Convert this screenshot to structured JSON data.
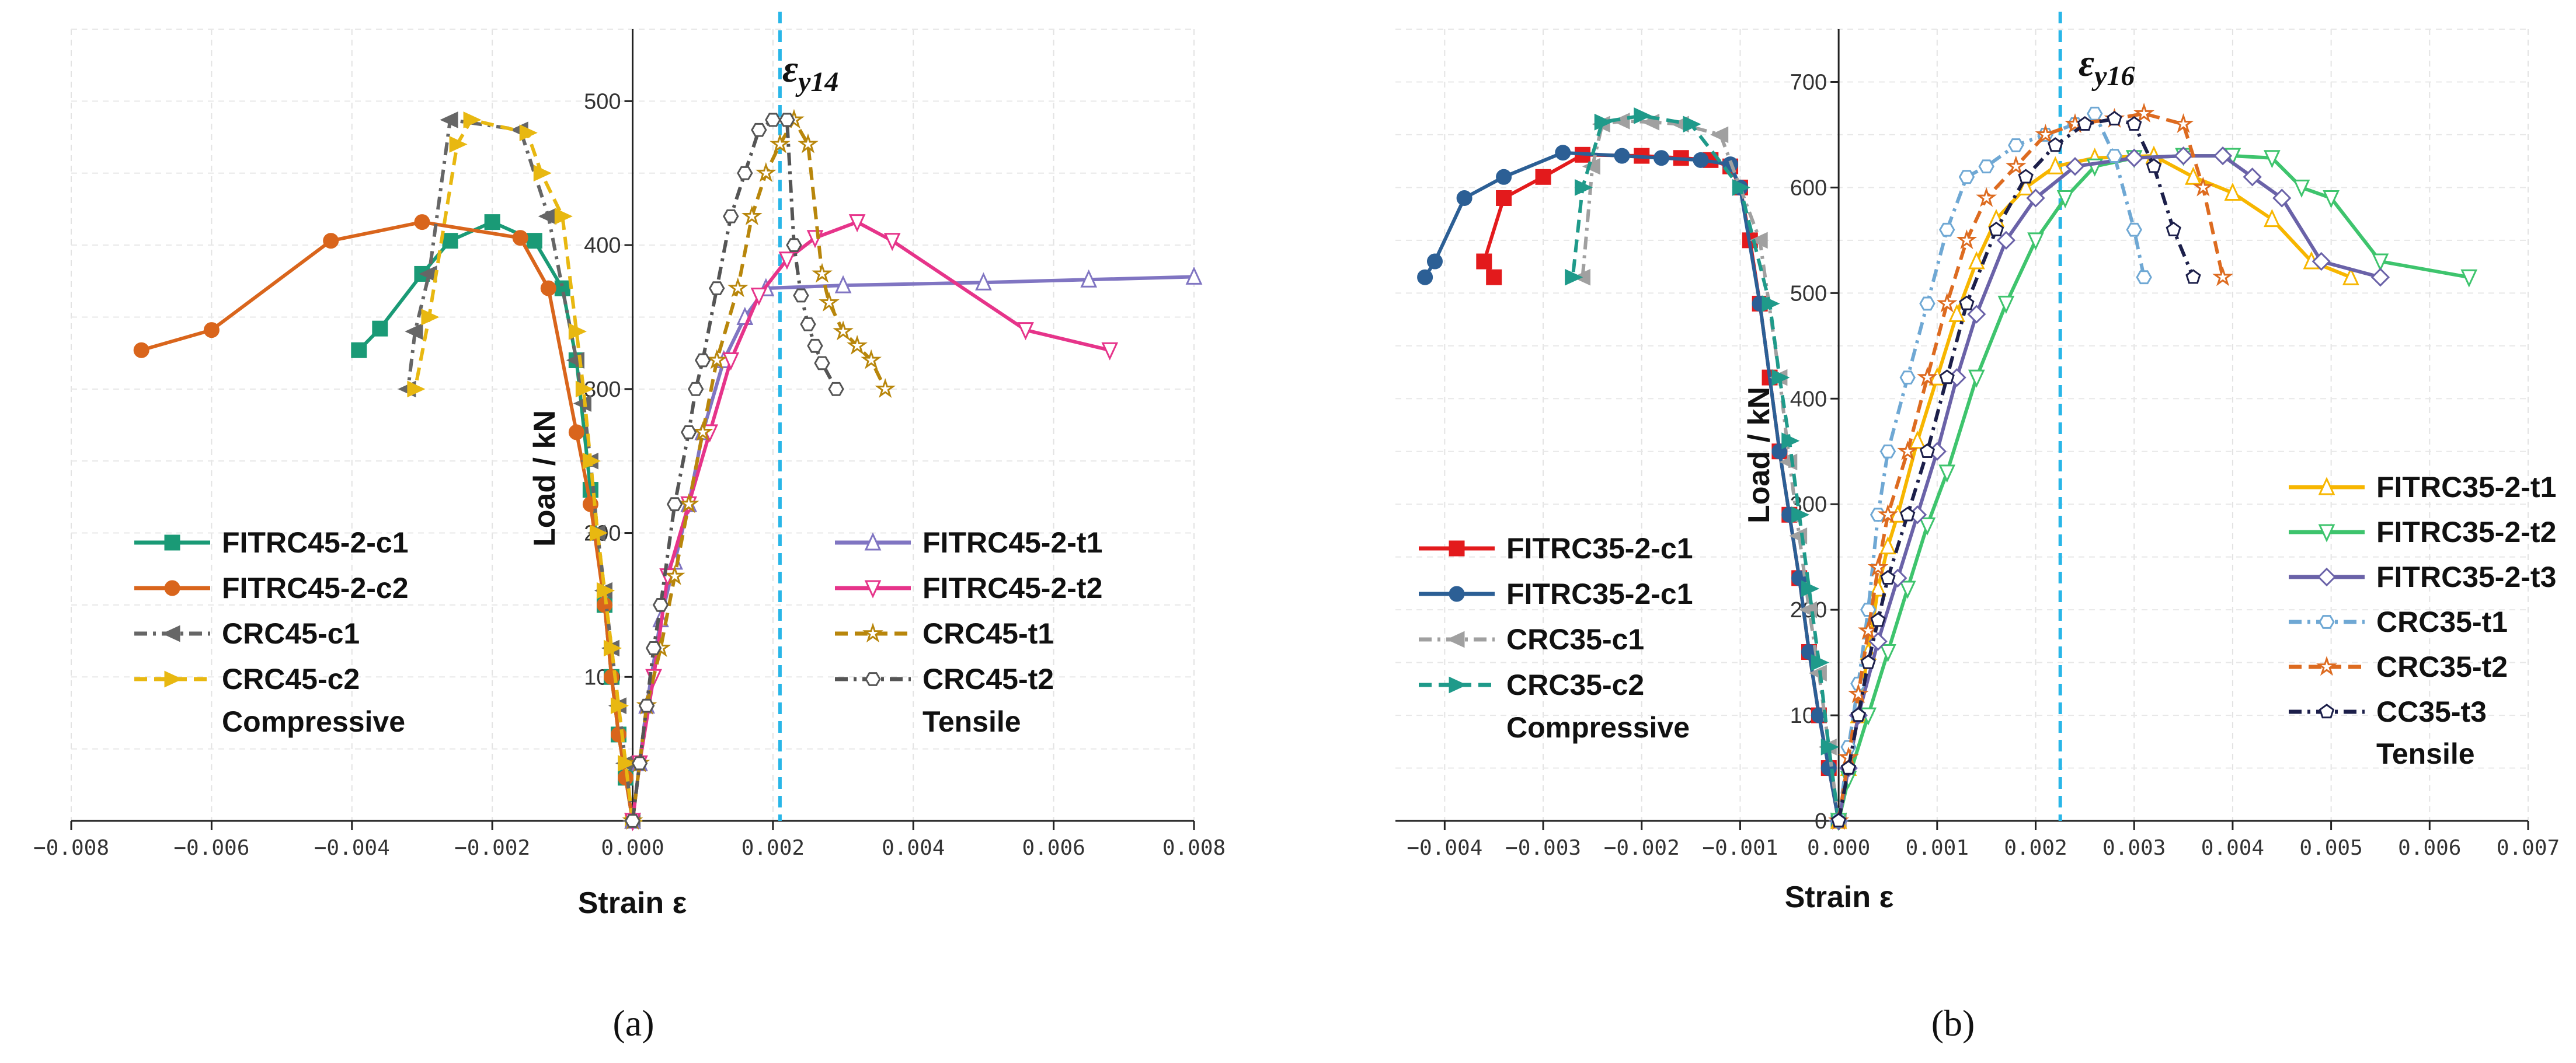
{
  "chart_data": [
    {
      "panel_label": "(a)",
      "type": "line",
      "xlabel": "Strain ε",
      "ylabel": "Load / kN",
      "xlim": [
        -0.008,
        0.008
      ],
      "ylim": [
        0,
        550
      ],
      "xticks": [
        "−0.008",
        "−0.006",
        "−0.004",
        "−0.002",
        "0.000",
        "0.002",
        "0.004",
        "0.006",
        "0.008"
      ],
      "yticks": [
        "100",
        "200",
        "300",
        "400",
        "500"
      ],
      "grid": true,
      "reference_line": {
        "x": 0.0021,
        "label_main": "ε",
        "label_sub": "y14",
        "color": "#29b6e8"
      },
      "legend_groups": [
        {
          "title": "Compressive",
          "placement": "left",
          "series_index": [
            0,
            1,
            2,
            3
          ]
        },
        {
          "title": "Tensile",
          "placement": "right",
          "series_index": [
            4,
            5,
            6,
            7
          ]
        }
      ],
      "series": [
        {
          "name": "FITRC45-2-c1",
          "color": "#1a9a76",
          "dash": "solid",
          "marker": "square",
          "filled": true,
          "x": [
            0,
            -0.0001,
            -0.0002,
            -0.0003,
            -0.0004,
            -0.0006,
            -0.0008,
            -0.001,
            -0.0014,
            -0.002,
            -0.0026,
            -0.003,
            -0.0036,
            -0.0039
          ],
          "y": [
            0,
            30,
            60,
            100,
            150,
            230,
            320,
            370,
            403,
            416,
            403,
            380,
            342,
            327
          ]
        },
        {
          "name": "FITRC45-2-c2",
          "color": "#d9651c",
          "dash": "solid",
          "marker": "circle",
          "filled": true,
          "x": [
            0,
            -0.0001,
            -0.0002,
            -0.0003,
            -0.0004,
            -0.0006,
            -0.0008,
            -0.0012,
            -0.0016,
            -0.003,
            -0.0043,
            -0.006,
            -0.007
          ],
          "y": [
            0,
            30,
            60,
            100,
            150,
            220,
            270,
            370,
            405,
            416,
            403,
            341,
            327
          ]
        },
        {
          "name": "CRC45-c1",
          "color": "#666666",
          "dash": "dashdot",
          "marker": "tri-left",
          "filled": true,
          "x": [
            0,
            -0.0001,
            -0.0002,
            -0.0003,
            -0.0004,
            -0.0005,
            -0.0006,
            -0.0007,
            -0.0008,
            -0.0012,
            -0.0016,
            -0.0026,
            -0.0029,
            -0.0031,
            -0.0032
          ],
          "y": [
            0,
            40,
            80,
            120,
            160,
            200,
            250,
            290,
            320,
            420,
            480,
            487,
            380,
            340,
            300
          ]
        },
        {
          "name": "CRC45-c2",
          "color": "#e8b811",
          "dash": "dash",
          "marker": "tri-right",
          "filled": true,
          "x": [
            0,
            -0.0001,
            -0.0002,
            -0.0003,
            -0.0004,
            -0.0005,
            -0.0006,
            -0.0007,
            -0.0008,
            -0.001,
            -0.0013,
            -0.0015,
            -0.0023,
            -0.0025,
            -0.0029,
            -0.0031
          ],
          "y": [
            0,
            40,
            80,
            120,
            160,
            200,
            250,
            300,
            340,
            420,
            450,
            478,
            487,
            470,
            350,
            300
          ]
        },
        {
          "name": "FITRC45-2-t1",
          "color": "#8075c2",
          "dash": "solid",
          "marker": "tri-up",
          "filled": false,
          "x": [
            0,
            0.0001,
            0.0002,
            0.0004,
            0.0006,
            0.0008,
            0.001,
            0.0013,
            0.0016,
            0.0019,
            0.003,
            0.005,
            0.0065,
            0.008
          ],
          "y": [
            0,
            40,
            80,
            140,
            180,
            220,
            270,
            320,
            350,
            370,
            372,
            374,
            376,
            378
          ]
        },
        {
          "name": "FITRC45-2-t2",
          "color": "#e6348a",
          "dash": "solid",
          "marker": "tri-down",
          "filled": false,
          "x": [
            0,
            0.0001,
            0.0003,
            0.0005,
            0.0008,
            0.0011,
            0.0014,
            0.0018,
            0.0022,
            0.0026,
            0.0032,
            0.0037,
            0.0056,
            0.0068
          ],
          "y": [
            0,
            40,
            100,
            170,
            220,
            270,
            320,
            365,
            390,
            405,
            416,
            403,
            341,
            327
          ]
        },
        {
          "name": "CRC45-t1",
          "color": "#b8860b",
          "dash": "dash",
          "marker": "star",
          "filled": false,
          "x": [
            0,
            0.0001,
            0.0002,
            0.0004,
            0.0006,
            0.0008,
            0.001,
            0.0012,
            0.0015,
            0.0017,
            0.0019,
            0.0021,
            0.0023,
            0.0025,
            0.0027,
            0.0028,
            0.003,
            0.0032,
            0.0034,
            0.0036
          ],
          "y": [
            0,
            40,
            80,
            120,
            170,
            220,
            270,
            320,
            370,
            420,
            450,
            470,
            487,
            470,
            380,
            360,
            340,
            330,
            320,
            300
          ]
        },
        {
          "name": "CRC45-t2",
          "color": "#555555",
          "dash": "dashdot",
          "marker": "hexagon",
          "filled": false,
          "x": [
            0,
            0.0001,
            0.0002,
            0.0003,
            0.0004,
            0.0006,
            0.0008,
            0.0009,
            0.001,
            0.0012,
            0.0014,
            0.0016,
            0.0018,
            0.002,
            0.0022,
            0.0023,
            0.0024,
            0.0025,
            0.0026,
            0.0027,
            0.0029
          ],
          "y": [
            0,
            40,
            80,
            120,
            150,
            220,
            270,
            300,
            320,
            370,
            420,
            450,
            480,
            487,
            487,
            400,
            365,
            345,
            330,
            318,
            300
          ]
        }
      ]
    },
    {
      "panel_label": "(b)",
      "type": "line",
      "xlabel": "Strain ε",
      "ylabel": "Load / kN",
      "xlim": [
        -0.0045,
        0.007
      ],
      "ylim": [
        0,
        750
      ],
      "xticks": [
        "−0.004",
        "−0.003",
        "−0.002",
        "−0.001",
        "0.000",
        "0.001",
        "0.002",
        "0.003",
        "0.004",
        "0.005",
        "0.006",
        "0.007"
      ],
      "yticks": [
        "0",
        "100",
        "200",
        "300",
        "400",
        "500",
        "600",
        "700"
      ],
      "grid": true,
      "reference_line": {
        "x": 0.00225,
        "label_main": "ε",
        "label_sub": "y16",
        "color": "#29b6e8"
      },
      "legend_groups": [
        {
          "title": "Compressive",
          "placement": "left",
          "series_index": [
            0,
            1,
            2,
            3
          ]
        },
        {
          "title": "Tensile",
          "placement": "right",
          "series_index": [
            4,
            5,
            6,
            7,
            8,
            9
          ]
        }
      ],
      "series": [
        {
          "name": "FITRC35-2-c1",
          "color": "#e31a1c",
          "dash": "solid",
          "marker": "square",
          "filled": true,
          "x": [
            0,
            -0.0001,
            -0.0002,
            -0.0003,
            -0.0004,
            -0.0005,
            -0.0006,
            -0.0007,
            -0.0008,
            -0.0009,
            -0.001,
            -0.0011,
            -0.0013,
            -0.0016,
            -0.002,
            -0.0026,
            -0.003,
            -0.0034,
            -0.0036,
            -0.0035
          ],
          "y": [
            0,
            50,
            100,
            160,
            230,
            290,
            350,
            420,
            490,
            550,
            600,
            620,
            626,
            628,
            630,
            631,
            610,
            590,
            530,
            515
          ]
        },
        {
          "name": "FITRC35-2-c1",
          "color": "#2c5f95",
          "dash": "solid",
          "marker": "circle",
          "filled": true,
          "x": [
            0,
            -0.0001,
            -0.0002,
            -0.0003,
            -0.0004,
            -0.0005,
            -0.0006,
            -0.0008,
            -0.001,
            -0.0011,
            -0.0014,
            -0.0018,
            -0.0022,
            -0.0028,
            -0.0034,
            -0.0038,
            -0.0041,
            -0.0042
          ],
          "y": [
            0,
            50,
            100,
            160,
            230,
            290,
            350,
            490,
            600,
            622,
            626,
            628,
            630,
            633,
            610,
            590,
            530,
            515
          ]
        },
        {
          "name": "CRC35-c1",
          "color": "#a0a0a0",
          "dash": "dashdot",
          "marker": "tri-left",
          "filled": true,
          "x": [
            0,
            -0.0001,
            -0.0002,
            -0.0003,
            -0.0004,
            -0.0005,
            -0.0006,
            -0.0008,
            -0.0012,
            -0.0016,
            -0.0019,
            -0.0022,
            -0.0024,
            -0.0025,
            -0.0026
          ],
          "y": [
            0,
            70,
            140,
            200,
            270,
            340,
            420,
            550,
            650,
            660,
            662,
            663,
            660,
            620,
            515
          ]
        },
        {
          "name": "CRC35-c2",
          "color": "#1f9a8a",
          "dash": "dash",
          "marker": "tri-right",
          "filled": true,
          "x": [
            0,
            -0.0001,
            -0.0002,
            -0.0003,
            -0.0004,
            -0.0005,
            -0.0006,
            -0.0007,
            -0.001,
            -0.0015,
            -0.002,
            -0.0024,
            -0.0026,
            -0.0027
          ],
          "y": [
            0,
            70,
            150,
            220,
            290,
            360,
            420,
            490,
            600,
            660,
            668,
            662,
            600,
            515
          ]
        },
        {
          "name": "FITRC35-2-t1",
          "color": "#f7b600",
          "dash": "solid",
          "marker": "tri-up",
          "filled": false,
          "x": [
            0,
            0.0001,
            0.0002,
            0.0003,
            0.0004,
            0.0005,
            0.0006,
            0.0008,
            0.001,
            0.0012,
            0.0014,
            0.0016,
            0.0019,
            0.0022,
            0.0026,
            0.0032,
            0.0036,
            0.004,
            0.0044,
            0.0048,
            0.0052
          ],
          "y": [
            0,
            50,
            100,
            160,
            220,
            260,
            290,
            360,
            420,
            480,
            530,
            570,
            600,
            620,
            628,
            630,
            610,
            595,
            570,
            530,
            515
          ]
        },
        {
          "name": "FITRC35-2-t2",
          "color": "#3ec46d",
          "dash": "solid",
          "marker": "tri-down",
          "filled": false,
          "x": [
            0,
            0.0001,
            0.0003,
            0.0005,
            0.0007,
            0.0009,
            0.0011,
            0.0014,
            0.0017,
            0.002,
            0.0023,
            0.0026,
            0.003,
            0.0035,
            0.004,
            0.0044,
            0.0047,
            0.005,
            0.0055,
            0.0064
          ],
          "y": [
            0,
            40,
            100,
            160,
            220,
            280,
            330,
            420,
            490,
            550,
            590,
            620,
            628,
            630,
            630,
            628,
            600,
            590,
            530,
            515
          ]
        },
        {
          "name": "FITRC35-2-t3",
          "color": "#6a62a8",
          "dash": "solid",
          "marker": "diamond",
          "filled": false,
          "x": [
            0,
            0.0001,
            0.0002,
            0.0004,
            0.0006,
            0.0008,
            0.001,
            0.0012,
            0.0014,
            0.0017,
            0.002,
            0.0024,
            0.003,
            0.0035,
            0.0039,
            0.0042,
            0.0045,
            0.0049,
            0.0055
          ],
          "y": [
            0,
            50,
            100,
            170,
            230,
            290,
            350,
            420,
            480,
            550,
            590,
            620,
            628,
            630,
            630,
            610,
            590,
            530,
            515
          ]
        },
        {
          "name": "CRC35-t1",
          "color": "#6fa8d4",
          "dash": "dashdot",
          "marker": "hexagon",
          "filled": false,
          "x": [
            0,
            0.0001,
            0.0002,
            0.0003,
            0.0004,
            0.0005,
            0.0007,
            0.0009,
            0.0011,
            0.0013,
            0.0015,
            0.0018,
            0.0021,
            0.0024,
            0.0026,
            0.0028,
            0.003,
            0.0031
          ],
          "y": [
            0,
            70,
            130,
            200,
            290,
            350,
            420,
            490,
            560,
            610,
            620,
            640,
            650,
            660,
            670,
            630,
            560,
            515
          ]
        },
        {
          "name": "CRC35-t2",
          "color": "#dd6b20",
          "dash": "dash",
          "marker": "star",
          "filled": false,
          "x": [
            0,
            0.0001,
            0.0002,
            0.0003,
            0.0004,
            0.0005,
            0.0007,
            0.0009,
            0.0011,
            0.0013,
            0.0015,
            0.0018,
            0.0021,
            0.0024,
            0.0028,
            0.0031,
            0.0035,
            0.0037,
            0.0039
          ],
          "y": [
            0,
            60,
            120,
            180,
            240,
            290,
            350,
            420,
            490,
            550,
            590,
            620,
            650,
            660,
            665,
            670,
            660,
            600,
            515
          ]
        },
        {
          "name": "CC35-t3",
          "color": "#1c1f4a",
          "dash": "dashdot",
          "marker": "pentagon",
          "filled": false,
          "x": [
            0,
            0.0001,
            0.0002,
            0.0003,
            0.0004,
            0.0005,
            0.0007,
            0.0009,
            0.0011,
            0.0013,
            0.0016,
            0.0019,
            0.0022,
            0.0025,
            0.0028,
            0.003,
            0.0032,
            0.0034,
            0.0036
          ],
          "y": [
            0,
            50,
            100,
            150,
            190,
            230,
            290,
            350,
            420,
            490,
            560,
            610,
            640,
            660,
            665,
            660,
            620,
            560,
            515
          ]
        }
      ]
    }
  ]
}
